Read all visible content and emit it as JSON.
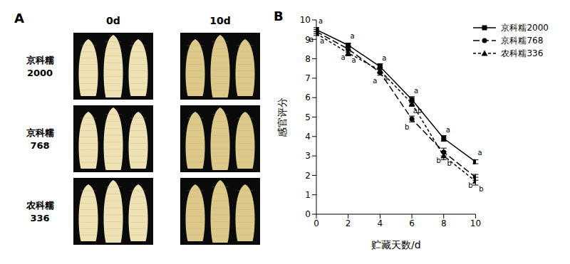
{
  "chart_data": {
    "type": "line",
    "panel_label": "B",
    "x_label": "贮藏天数/d",
    "y_label": "感官评分",
    "x": [
      0,
      2,
      4,
      6,
      8,
      10
    ],
    "xlim": [
      0,
      10
    ],
    "xticks": [
      0,
      2,
      4,
      6,
      8,
      10
    ],
    "ylim": [
      0,
      10
    ],
    "yticks": [
      0,
      1,
      2,
      3,
      4,
      5,
      6,
      7,
      8,
      9,
      10
    ],
    "legend": "upper right",
    "series": [
      {
        "name": "京科糯2000",
        "color": "#000000",
        "line_style": "solid",
        "marker": "square",
        "values": [
          9.5,
          8.7,
          7.6,
          5.9,
          3.9,
          2.7
        ],
        "errors": [
          0.1,
          0.1,
          0.15,
          0.15,
          0.15,
          0.1
        ],
        "letters": [
          "a",
          "a",
          "a",
          "a",
          "a",
          "a"
        ]
      },
      {
        "name": "京科糯768",
        "color": "#000000",
        "line_style": "long_dash",
        "marker": "circle",
        "values": [
          9.4,
          8.5,
          7.3,
          4.9,
          3.2,
          1.9
        ],
        "errors": [
          0.1,
          0.15,
          0.15,
          0.15,
          0.2,
          0.15
        ],
        "letters": [
          "a",
          "a",
          "a",
          "b",
          "b",
          "b"
        ]
      },
      {
        "name": "农科糯336",
        "color": "#000000",
        "line_style": "dashed",
        "marker": "triangle",
        "values": [
          9.3,
          8.3,
          7.4,
          5.7,
          3.0,
          1.7
        ],
        "errors": [
          0.1,
          0.15,
          0.15,
          0.15,
          0.2,
          0.2
        ],
        "letters": [
          "a",
          "a",
          "a",
          "ab",
          "b",
          "b"
        ]
      }
    ]
  },
  "image_panel": {
    "panel_label": "A",
    "columns": [
      "0d",
      "10d"
    ],
    "rows": [
      "京科糯2000",
      "京科糯768",
      "农科糯336"
    ]
  }
}
